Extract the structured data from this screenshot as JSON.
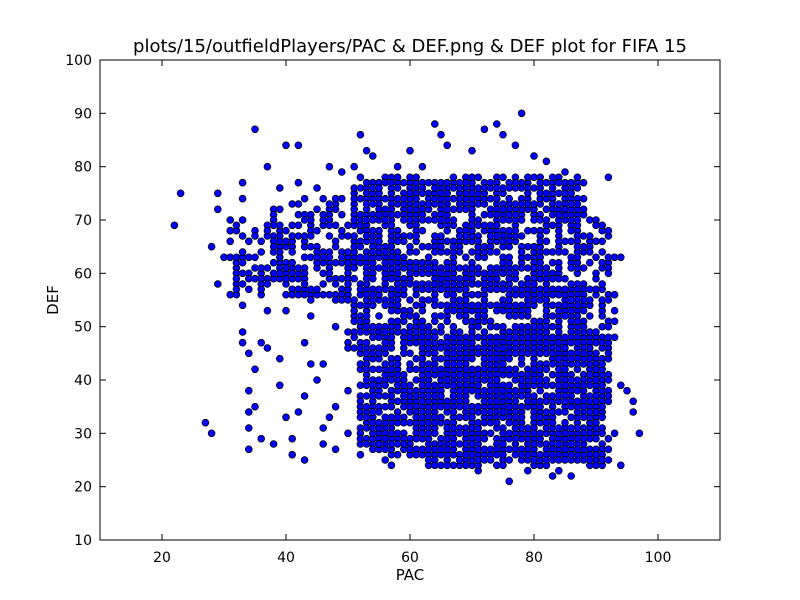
{
  "chart_data": {
    "type": "scatter",
    "title": "plots/15/outfieldPlayers/PAC & DEF.png & DEF plot for FIFA 15",
    "xlabel": "PAC",
    "ylabel": "DEF",
    "xlim": [
      10,
      110
    ],
    "ylim": [
      10,
      100
    ],
    "xticks": [
      "20",
      "40",
      "60",
      "80",
      "100"
    ],
    "yticks": [
      "10",
      "20",
      "30",
      "40",
      "50",
      "60",
      "70",
      "80",
      "90",
      "100"
    ],
    "grid": false,
    "marker_color": "#0000ff",
    "marker_edge_color": "#000000",
    "series": [
      {
        "points": [
          [
            22,
            69
          ],
          [
            23,
            75
          ],
          [
            27,
            32
          ],
          [
            28,
            30
          ],
          [
            28,
            65
          ],
          [
            29,
            58
          ],
          [
            29,
            75
          ],
          [
            29,
            72
          ],
          [
            30,
            63
          ],
          [
            31,
            66
          ],
          [
            31,
            70
          ],
          [
            32,
            61
          ],
          [
            32,
            56
          ],
          [
            32,
            68
          ],
          [
            33,
            47
          ],
          [
            33,
            49
          ],
          [
            33,
            54
          ],
          [
            33,
            74
          ],
          [
            33,
            77
          ],
          [
            34,
            27
          ],
          [
            34,
            31
          ],
          [
            34,
            34
          ],
          [
            34,
            38
          ],
          [
            34,
            45
          ],
          [
            34,
            60
          ],
          [
            35,
            87
          ],
          [
            35,
            35
          ],
          [
            35,
            42
          ],
          [
            36,
            29
          ],
          [
            36,
            47
          ],
          [
            36,
            66
          ],
          [
            37,
            46
          ],
          [
            37,
            53
          ],
          [
            37,
            59
          ],
          [
            37,
            80
          ],
          [
            38,
            28
          ],
          [
            38,
            62
          ],
          [
            38,
            72
          ],
          [
            39,
            39
          ],
          [
            39,
            44
          ],
          [
            39,
            76
          ],
          [
            40,
            84
          ],
          [
            40,
            33
          ],
          [
            40,
            53
          ],
          [
            41,
            26
          ],
          [
            41,
            29
          ],
          [
            42,
            84
          ],
          [
            42,
            34
          ],
          [
            42,
            67
          ],
          [
            42,
            77
          ],
          [
            43,
            25
          ],
          [
            43,
            37
          ],
          [
            43,
            47
          ],
          [
            44,
            43
          ],
          [
            44,
            52
          ],
          [
            45,
            40
          ],
          [
            45,
            61
          ],
          [
            45,
            76
          ],
          [
            46,
            28
          ],
          [
            46,
            31
          ],
          [
            46,
            43
          ],
          [
            47,
            33
          ],
          [
            47,
            56
          ],
          [
            47,
            80
          ],
          [
            48,
            27
          ],
          [
            48,
            35
          ],
          [
            48,
            50
          ],
          [
            49,
            79
          ],
          [
            49,
            64
          ],
          [
            50,
            30
          ],
          [
            50,
            38
          ],
          [
            51,
            80
          ],
          [
            52,
            86
          ],
          [
            52,
            26
          ],
          [
            52,
            42
          ],
          [
            53,
            83
          ],
          [
            54,
            28
          ],
          [
            54,
            44
          ],
          [
            54,
            82
          ],
          [
            55,
            35
          ],
          [
            56,
            25
          ],
          [
            56,
            40
          ],
          [
            57,
            24
          ],
          [
            58,
            29
          ],
          [
            58,
            80
          ],
          [
            60,
            83
          ],
          [
            60,
            26
          ],
          [
            61,
            31
          ],
          [
            62,
            80
          ],
          [
            63,
            24
          ],
          [
            64,
            88
          ],
          [
            64,
            26
          ],
          [
            65,
            86
          ],
          [
            66,
            84
          ],
          [
            67,
            26
          ],
          [
            68,
            24
          ],
          [
            70,
            83
          ],
          [
            71,
            23
          ],
          [
            72,
            87
          ],
          [
            73,
            26
          ],
          [
            74,
            88
          ],
          [
            75,
            86
          ],
          [
            76,
            21
          ],
          [
            77,
            84
          ],
          [
            78,
            90
          ],
          [
            79,
            23
          ],
          [
            80,
            82
          ],
          [
            81,
            24
          ],
          [
            82,
            81
          ],
          [
            83,
            22
          ],
          [
            83,
            74
          ],
          [
            84,
            23
          ],
          [
            85,
            79
          ],
          [
            86,
            22
          ],
          [
            86,
            76
          ],
          [
            87,
            25
          ],
          [
            88,
            74
          ],
          [
            89,
            24
          ],
          [
            90,
            70
          ],
          [
            90,
            33
          ],
          [
            91,
            52
          ],
          [
            91,
            24
          ],
          [
            92,
            78
          ],
          [
            92,
            62
          ],
          [
            93,
            48
          ],
          [
            93,
            30
          ],
          [
            94,
            63
          ],
          [
            94,
            39
          ],
          [
            94,
            24
          ],
          [
            95,
            38
          ],
          [
            96,
            36
          ],
          [
            96,
            34
          ],
          [
            97,
            30
          ]
        ]
      }
    ]
  }
}
